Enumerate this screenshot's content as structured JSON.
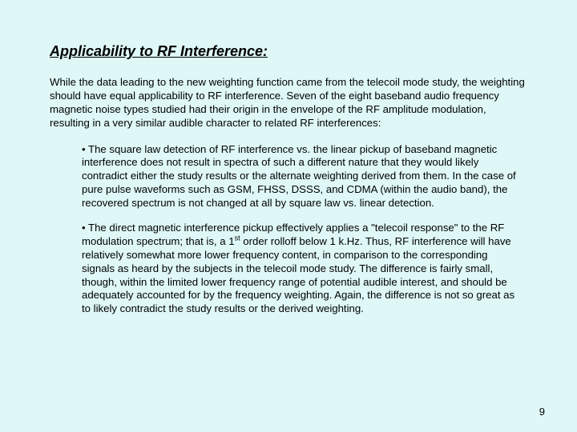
{
  "title": "Applicability to RF Interference:",
  "intro": "While the data leading to the new weighting function came from the telecoil mode study, the weighting should have equal applicability to RF interference.  Seven of the eight baseband audio frequency magnetic noise types studied had their origin in the envelope of the RF amplitude modulation, resulting in a very similar audible character to related RF interferences:",
  "bullet1": "• The square law detection of RF interference vs. the linear pickup of baseband magnetic interference does not result in spectra of such a different nature that they would likely contradict either the study results or the alternate weighting derived from them.  In the case of pure pulse waveforms such as GSM, FHSS, DSSS, and CDMA (within the audio band), the recovered spectrum is not changed at all by square law vs. linear detection.",
  "bullet2_a": "• The direct magnetic interference pickup effectively applies a \"telecoil response\" to the RF modulation spectrum; that is, a 1",
  "bullet2_sup": "st",
  "bullet2_b": " order rolloff below 1 k.Hz.  Thus, RF interference will have relatively somewhat more lower frequency content, in comparison to the corresponding signals as heard by the subjects in the telecoil mode study.  The difference is fairly small, though, within the limited lower frequency range of potential audible interest, and should be adequately accounted for by the frequency weighting.  Again, the difference is not so great as to likely contradict the study results or the derived weighting.",
  "page": "9"
}
